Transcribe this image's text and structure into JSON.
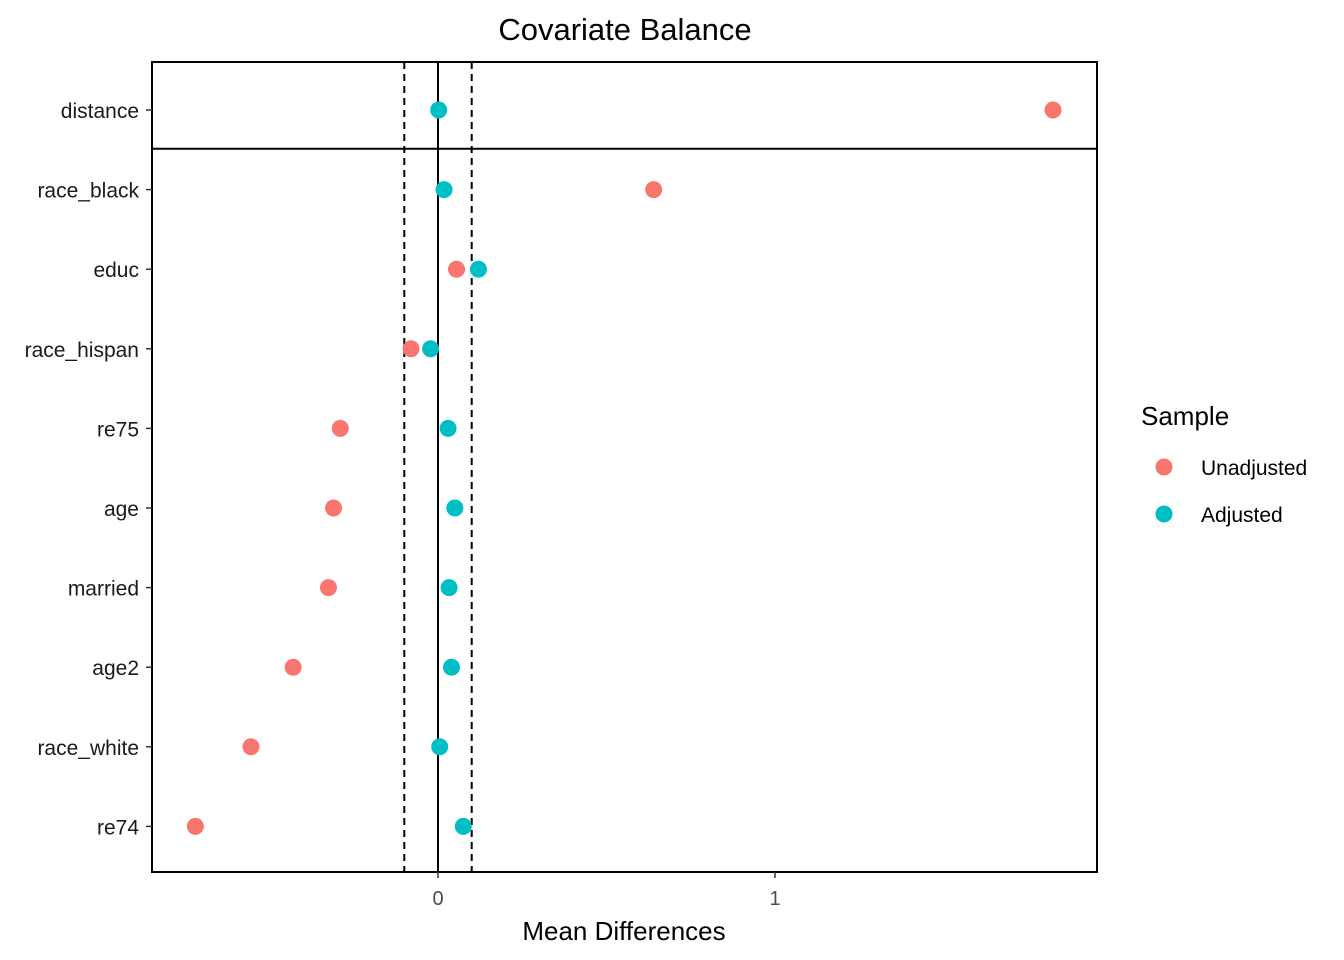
{
  "chart_data": {
    "type": "scatter",
    "title": "Covariate Balance",
    "xlabel": "Mean Differences",
    "ylabel": "",
    "xlim": [
      -0.85,
      1.95
    ],
    "xticks": [
      0,
      1
    ],
    "xtick_labels": [
      "0",
      "1"
    ],
    "reference_lines": {
      "solid": [
        0
      ],
      "dashed": [
        -0.1,
        0.1
      ]
    },
    "separator_after": "distance",
    "categories": [
      "distance",
      "race_black",
      "educ",
      "race_hispan",
      "re75",
      "age",
      "married",
      "age2",
      "race_white",
      "re74"
    ],
    "series": [
      {
        "name": "Unadjusted",
        "color": "#F8766D",
        "values": [
          1.825,
          0.64,
          0.055,
          -0.08,
          -0.29,
          -0.31,
          -0.325,
          -0.43,
          -0.555,
          -0.72
        ]
      },
      {
        "name": "Adjusted",
        "color": "#00BFC4",
        "values": [
          0.002,
          0.018,
          0.12,
          -0.022,
          0.03,
          0.05,
          0.033,
          0.04,
          0.005,
          0.075
        ]
      }
    ],
    "legend": {
      "title": "Sample",
      "placement": "right"
    },
    "grid": false
  }
}
